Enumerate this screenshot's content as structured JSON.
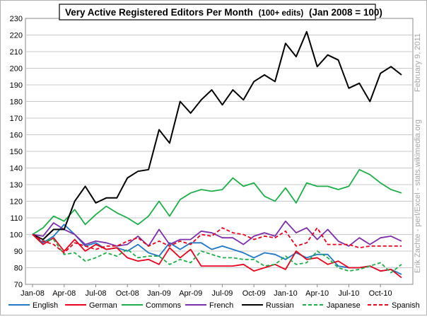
{
  "chart_data": {
    "type": "line",
    "title_main": "Very Active Registered Editors  Per Month",
    "title_small": "(100+ edits)",
    "title_range": "(Jan 2008  = 100)",
    "side_note": "Erik Zachte  -  perl/Excel  -  stats.wikimedia.org",
    "date_note": "February 9, 2011",
    "ylim": [
      70,
      230
    ],
    "y_ticks": [
      70,
      80,
      90,
      100,
      110,
      120,
      130,
      140,
      150,
      160,
      170,
      180,
      190,
      200,
      210,
      220,
      230
    ],
    "x_tick_labels": [
      "Jan-08",
      "Apr-08",
      "Jul-08",
      "Oct-08",
      "Jan-09",
      "Apr-09",
      "Jul-09",
      "Oct-09",
      "Jan-10",
      "Apr-10",
      "Jul-10",
      "Oct-10"
    ],
    "x": [
      "Jan-08",
      "Feb-08",
      "Mar-08",
      "Apr-08",
      "May-08",
      "Jun-08",
      "Jul-08",
      "Aug-08",
      "Sep-08",
      "Oct-08",
      "Nov-08",
      "Dec-08",
      "Jan-09",
      "Feb-09",
      "Mar-09",
      "Apr-09",
      "May-09",
      "Jun-09",
      "Jul-09",
      "Aug-09",
      "Sep-09",
      "Oct-09",
      "Nov-09",
      "Dec-09",
      "Jan-10",
      "Feb-10",
      "Mar-10",
      "Apr-10",
      "May-10",
      "Jun-10",
      "Jul-10",
      "Aug-10",
      "Sep-10",
      "Oct-10",
      "Nov-10",
      "Dec-10"
    ],
    "grid": true,
    "legend_position": "bottom",
    "series": [
      {
        "name": "English",
        "color": "#1f77c4",
        "dash": false,
        "values": [
          100,
          95,
          99,
          106,
          100,
          93,
          95,
          91,
          92,
          90,
          94,
          89,
          87,
          95,
          91,
          95,
          95,
          91,
          93,
          91,
          89,
          86,
          89,
          88,
          85,
          89,
          86,
          88,
          88,
          81,
          80,
          80,
          81,
          78,
          79,
          76
        ]
      },
      {
        "name": "German",
        "color": "#e8001c",
        "dash": false,
        "values": [
          100,
          94,
          98,
          90,
          97,
          90,
          94,
          91,
          92,
          86,
          84,
          85,
          82,
          92,
          86,
          91,
          81,
          81,
          81,
          81,
          82,
          78,
          80,
          82,
          79,
          90,
          85,
          86,
          82,
          84,
          80,
          80,
          81,
          78,
          79,
          74
        ]
      },
      {
        "name": "Commons",
        "color": "#1fad4a",
        "dash": false,
        "values": [
          100,
          104,
          111,
          108,
          115,
          106,
          112,
          117,
          113,
          110,
          106,
          111,
          120,
          111,
          121,
          125,
          127,
          126,
          127,
          134,
          129,
          131,
          123,
          120,
          128,
          119,
          131,
          129,
          129,
          127,
          129,
          139,
          136,
          131,
          127,
          125
        ]
      },
      {
        "name": "French",
        "color": "#7b2fa8",
        "dash": false,
        "values": [
          100,
          99,
          107,
          103,
          100,
          94,
          96,
          95,
          93,
          94,
          99,
          93,
          103,
          94,
          97,
          97,
          102,
          101,
          98,
          98,
          94,
          99,
          101,
          99,
          108,
          101,
          104,
          97,
          103,
          96,
          93,
          98,
          94,
          98,
          99,
          96
        ]
      },
      {
        "name": "Russian",
        "color": "#000000",
        "dash": false,
        "values": [
          100,
          97,
          103,
          103,
          120,
          129,
          119,
          122,
          122,
          134,
          138,
          139,
          163,
          155,
          180,
          173,
          181,
          187,
          178,
          187,
          181,
          192,
          196,
          192,
          215,
          207,
          222,
          201,
          208,
          205,
          188,
          191,
          180,
          197,
          201,
          196
        ]
      },
      {
        "name": "Japanese",
        "color": "#1fad4a",
        "dash": true,
        "values": [
          100,
          96,
          97,
          88,
          89,
          84,
          86,
          89,
          87,
          91,
          86,
          87,
          87,
          82,
          85,
          83,
          90,
          88,
          86,
          86,
          85,
          85,
          81,
          82,
          87,
          82,
          83,
          90,
          86,
          80,
          78,
          79,
          81,
          83,
          77,
          82
        ]
      },
      {
        "name": "Spanish",
        "color": "#e8001c",
        "dash": true,
        "values": [
          100,
          96,
          94,
          89,
          95,
          93,
          91,
          93,
          93,
          96,
          98,
          93,
          96,
          93,
          96,
          94,
          100,
          99,
          104,
          101,
          100,
          97,
          99,
          98,
          102,
          93,
          95,
          104,
          94,
          94,
          94,
          92,
          93,
          93,
          93,
          93
        ]
      }
    ]
  }
}
